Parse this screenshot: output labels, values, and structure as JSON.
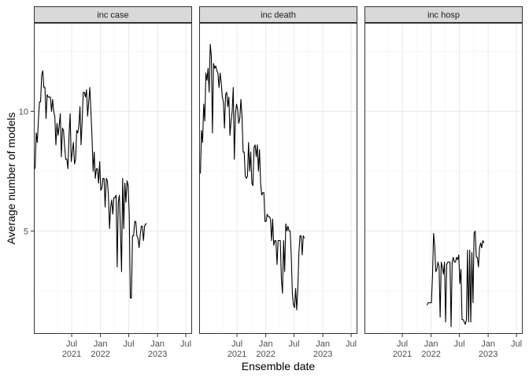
{
  "chart_data": {
    "type": "line",
    "facet_by": "target",
    "xlabel": "Ensemble date",
    "ylabel": "Average number of models",
    "xlim": [
      "2020-11-01",
      "2023-08-10"
    ],
    "ylim": [
      0.7,
      13.7
    ],
    "x_tick_labels": [
      {
        "date": "2021-07-01",
        "label": [
          "Jul",
          "2021"
        ]
      },
      {
        "date": "2022-01-01",
        "label": [
          "Jan",
          "2022"
        ]
      },
      {
        "date": "2022-07-01",
        "label": [
          "Jul",
          ""
        ]
      },
      {
        "date": "2023-01-01",
        "label": [
          "Jan",
          "2023"
        ]
      },
      {
        "date": "2023-07-01",
        "label": [
          "Jul",
          ""
        ]
      }
    ],
    "y_ticks": [
      5,
      10
    ],
    "grid": true,
    "line_color": "#000000",
    "panels": [
      {
        "title": "inc case",
        "points": [
          [
            "2020-11-09",
            7.6
          ],
          [
            "2020-11-16",
            9.1
          ],
          [
            "2020-11-23",
            8.7
          ],
          [
            "2020-11-30",
            9.6
          ],
          [
            "2020-12-07",
            10.4
          ],
          [
            "2020-12-14",
            10.4
          ],
          [
            "2020-12-21",
            11.5
          ],
          [
            "2020-12-28",
            11.7
          ],
          [
            "2021-01-04",
            11.0
          ],
          [
            "2021-01-11",
            11.0
          ],
          [
            "2021-01-18",
            9.7
          ],
          [
            "2021-01-25",
            10.7
          ],
          [
            "2021-02-01",
            10.6
          ],
          [
            "2021-02-08",
            10.6
          ],
          [
            "2021-02-15",
            10.6
          ],
          [
            "2021-02-22",
            10.0
          ],
          [
            "2021-03-01",
            10.5
          ],
          [
            "2021-03-08",
            10.0
          ],
          [
            "2021-03-15",
            9.8
          ],
          [
            "2021-03-22",
            8.6
          ],
          [
            "2021-03-29",
            9.5
          ],
          [
            "2021-04-05",
            9.0
          ],
          [
            "2021-04-12",
            9.4
          ],
          [
            "2021-04-19",
            9.9
          ],
          [
            "2021-04-26",
            8.1
          ],
          [
            "2021-05-03",
            9.3
          ],
          [
            "2021-05-10",
            9.2
          ],
          [
            "2021-05-17",
            8.5
          ],
          [
            "2021-05-24",
            8.0
          ],
          [
            "2021-05-31",
            8.0
          ],
          [
            "2021-06-07",
            7.6
          ],
          [
            "2021-06-14",
            9.0
          ],
          [
            "2021-06-21",
            9.9
          ],
          [
            "2021-06-28",
            7.9
          ],
          [
            "2021-07-05",
            8.3
          ],
          [
            "2021-07-12",
            8.7
          ],
          [
            "2021-07-19",
            7.8
          ],
          [
            "2021-07-26",
            8.0
          ],
          [
            "2021-08-02",
            9.2
          ],
          [
            "2021-08-09",
            9.1
          ],
          [
            "2021-08-16",
            9.4
          ],
          [
            "2021-08-23",
            10.2
          ],
          [
            "2021-08-30",
            8.6
          ],
          [
            "2021-09-06",
            9.6
          ],
          [
            "2021-09-13",
            10.8
          ],
          [
            "2021-09-20",
            10.8
          ],
          [
            "2021-09-27",
            10.6
          ],
          [
            "2021-10-04",
            10.9
          ],
          [
            "2021-10-11",
            9.8
          ],
          [
            "2021-10-18",
            10.4
          ],
          [
            "2021-10-25",
            11.0
          ],
          [
            "2021-11-01",
            10.0
          ],
          [
            "2021-11-08",
            8.9
          ],
          [
            "2021-11-15",
            7.5
          ],
          [
            "2021-11-22",
            8.3
          ],
          [
            "2021-11-29",
            7.2
          ],
          [
            "2021-12-06",
            7.6
          ],
          [
            "2021-12-13",
            7.6
          ],
          [
            "2021-12-20",
            7.0
          ],
          [
            "2021-12-27",
            7.9
          ],
          [
            "2022-01-03",
            6.7
          ],
          [
            "2022-01-10",
            6.8
          ],
          [
            "2022-01-17",
            7.2
          ],
          [
            "2022-01-24",
            7.2
          ],
          [
            "2022-01-31",
            6.0
          ],
          [
            "2022-02-07",
            7.2
          ],
          [
            "2022-02-14",
            7.1
          ],
          [
            "2022-02-21",
            6.5
          ],
          [
            "2022-02-28",
            5.1
          ],
          [
            "2022-03-07",
            6.0
          ],
          [
            "2022-03-14",
            6.3
          ],
          [
            "2022-03-21",
            5.7
          ],
          [
            "2022-03-28",
            6.4
          ],
          [
            "2022-04-04",
            6.4
          ],
          [
            "2022-04-11",
            6.5
          ],
          [
            "2022-04-18",
            3.5
          ],
          [
            "2022-04-25",
            6.2
          ],
          [
            "2022-05-02",
            6.5
          ],
          [
            "2022-05-09",
            5.0
          ],
          [
            "2022-05-16",
            3.3
          ],
          [
            "2022-05-23",
            7.2
          ],
          [
            "2022-05-30",
            5.1
          ],
          [
            "2022-06-06",
            7.0
          ],
          [
            "2022-06-13",
            6.2
          ],
          [
            "2022-06-20",
            7.1
          ],
          [
            "2022-06-27",
            6.9
          ],
          [
            "2022-07-04",
            5.7
          ],
          [
            "2022-07-11",
            2.2
          ],
          [
            "2022-07-18",
            2.2
          ],
          [
            "2022-07-25",
            4.8
          ],
          [
            "2022-08-01",
            4.8
          ],
          [
            "2022-08-08",
            5.4
          ],
          [
            "2022-08-15",
            5.4
          ],
          [
            "2022-08-22",
            4.8
          ],
          [
            "2022-08-29",
            4.7
          ],
          [
            "2022-09-05",
            4.3
          ],
          [
            "2022-09-12",
            4.8
          ],
          [
            "2022-09-19",
            5.2
          ],
          [
            "2022-09-26",
            5.2
          ],
          [
            "2022-10-03",
            4.6
          ],
          [
            "2022-10-10",
            5.2
          ],
          [
            "2022-10-17",
            5.3
          ],
          [
            "2022-10-24",
            5.3
          ]
        ]
      },
      {
        "title": "inc death",
        "points": [
          [
            "2020-11-09",
            7.4
          ],
          [
            "2020-11-16",
            9.2
          ],
          [
            "2020-11-23",
            8.7
          ],
          [
            "2020-11-30",
            10.3
          ],
          [
            "2020-12-07",
            9.6
          ],
          [
            "2020-12-14",
            11.6
          ],
          [
            "2020-12-21",
            11.3
          ],
          [
            "2020-12-28",
            11.8
          ],
          [
            "2021-01-04",
            10.8
          ],
          [
            "2021-01-11",
            12.8
          ],
          [
            "2021-01-18",
            12.3
          ],
          [
            "2021-01-25",
            9.1
          ],
          [
            "2021-02-01",
            12.0
          ],
          [
            "2021-02-08",
            11.8
          ],
          [
            "2021-02-15",
            11.9
          ],
          [
            "2021-02-22",
            11.7
          ],
          [
            "2021-03-01",
            11.6
          ],
          [
            "2021-03-08",
            11.0
          ],
          [
            "2021-03-15",
            11.6
          ],
          [
            "2021-03-22",
            11.2
          ],
          [
            "2021-03-29",
            10.6
          ],
          [
            "2021-04-05",
            10.4
          ],
          [
            "2021-04-12",
            9.3
          ],
          [
            "2021-04-19",
            10.7
          ],
          [
            "2021-04-26",
            10.8
          ],
          [
            "2021-05-03",
            10.2
          ],
          [
            "2021-05-10",
            10.6
          ],
          [
            "2021-05-17",
            9.0
          ],
          [
            "2021-05-24",
            9.6
          ],
          [
            "2021-05-31",
            10.0
          ],
          [
            "2021-06-07",
            11.0
          ],
          [
            "2021-06-14",
            8.0
          ],
          [
            "2021-06-21",
            9.9
          ],
          [
            "2021-06-28",
            10.3
          ],
          [
            "2021-07-05",
            10.1
          ],
          [
            "2021-07-12",
            9.5
          ],
          [
            "2021-07-19",
            9.7
          ],
          [
            "2021-07-26",
            10.5
          ],
          [
            "2021-08-02",
            9.8
          ],
          [
            "2021-08-09",
            8.3
          ],
          [
            "2021-08-16",
            8.3
          ],
          [
            "2021-08-23",
            7.3
          ],
          [
            "2021-08-30",
            7.2
          ],
          [
            "2021-09-06",
            7.3
          ],
          [
            "2021-09-13",
            8.7
          ],
          [
            "2021-09-20",
            7.5
          ],
          [
            "2021-09-27",
            8.3
          ],
          [
            "2021-10-04",
            7.0
          ],
          [
            "2021-10-11",
            6.9
          ],
          [
            "2021-10-18",
            8.5
          ],
          [
            "2021-10-25",
            8.6
          ],
          [
            "2021-11-01",
            8.1
          ],
          [
            "2021-11-08",
            8.6
          ],
          [
            "2021-11-15",
            7.5
          ],
          [
            "2021-11-22",
            8.4
          ],
          [
            "2021-11-29",
            7.0
          ],
          [
            "2021-12-06",
            6.5
          ],
          [
            "2021-12-13",
            6.6
          ],
          [
            "2021-12-20",
            6.6
          ],
          [
            "2021-12-27",
            5.4
          ],
          [
            "2022-01-03",
            5.4
          ],
          [
            "2022-01-10",
            5.7
          ],
          [
            "2022-01-17",
            5.6
          ],
          [
            "2022-01-24",
            5.6
          ],
          [
            "2022-01-31",
            5.5
          ],
          [
            "2022-02-07",
            4.6
          ],
          [
            "2022-02-14",
            5.5
          ],
          [
            "2022-02-21",
            4.4
          ],
          [
            "2022-02-28",
            4.6
          ],
          [
            "2022-03-07",
            4.6
          ],
          [
            "2022-03-14",
            3.6
          ],
          [
            "2022-03-21",
            4.6
          ],
          [
            "2022-03-28",
            4.6
          ],
          [
            "2022-04-04",
            4.6
          ],
          [
            "2022-04-11",
            3.0
          ],
          [
            "2022-04-18",
            2.4
          ],
          [
            "2022-04-25",
            4.6
          ],
          [
            "2022-05-02",
            3.3
          ],
          [
            "2022-05-09",
            5.3
          ],
          [
            "2022-05-16",
            5.0
          ],
          [
            "2022-05-23",
            5.2
          ],
          [
            "2022-05-30",
            5.0
          ],
          [
            "2022-06-06",
            5.0
          ],
          [
            "2022-06-13",
            4.0
          ],
          [
            "2022-06-20",
            2.4
          ],
          [
            "2022-06-27",
            1.9
          ],
          [
            "2022-07-04",
            1.8
          ],
          [
            "2022-07-11",
            2.6
          ],
          [
            "2022-07-18",
            1.7
          ],
          [
            "2022-07-25",
            2.6
          ],
          [
            "2022-08-01",
            4.1
          ],
          [
            "2022-08-08",
            4.8
          ],
          [
            "2022-08-15",
            4.8
          ],
          [
            "2022-08-22",
            4.0
          ],
          [
            "2022-08-29",
            4.8
          ],
          [
            "2022-09-05",
            4.7
          ]
        ]
      },
      {
        "title": "inc hosp",
        "points": [
          [
            "2021-12-06",
            1.9
          ],
          [
            "2021-12-13",
            2.0
          ],
          [
            "2021-12-20",
            2.0
          ],
          [
            "2021-12-27",
            2.0
          ],
          [
            "2022-01-03",
            2.0
          ],
          [
            "2022-01-10",
            3.1
          ],
          [
            "2022-01-17",
            4.9
          ],
          [
            "2022-01-24",
            4.4
          ],
          [
            "2022-01-31",
            3.3
          ],
          [
            "2022-02-07",
            3.4
          ],
          [
            "2022-02-14",
            3.7
          ],
          [
            "2022-02-21",
            3.5
          ],
          [
            "2022-02-28",
            1.4
          ],
          [
            "2022-03-07",
            3.7
          ],
          [
            "2022-03-14",
            3.5
          ],
          [
            "2022-03-21",
            3.2
          ],
          [
            "2022-03-28",
            3.7
          ],
          [
            "2022-04-04",
            1.2
          ],
          [
            "2022-04-11",
            3.6
          ],
          [
            "2022-04-18",
            3.7
          ],
          [
            "2022-04-25",
            3.7
          ],
          [
            "2022-05-02",
            3.7
          ],
          [
            "2022-05-09",
            1.0
          ],
          [
            "2022-05-16",
            3.7
          ],
          [
            "2022-05-23",
            3.9
          ],
          [
            "2022-05-30",
            3.7
          ],
          [
            "2022-06-06",
            3.7
          ],
          [
            "2022-06-13",
            3.9
          ],
          [
            "2022-06-20",
            3.8
          ],
          [
            "2022-06-27",
            4.0
          ],
          [
            "2022-07-04",
            2.8
          ],
          [
            "2022-07-11",
            3.4
          ],
          [
            "2022-07-18",
            1.3
          ],
          [
            "2022-07-25",
            1.3
          ],
          [
            "2022-08-01",
            1.2
          ],
          [
            "2022-08-08",
            1.1
          ],
          [
            "2022-08-15",
            1.3
          ],
          [
            "2022-08-22",
            4.2
          ],
          [
            "2022-08-29",
            1.2
          ],
          [
            "2022-09-05",
            4.2
          ],
          [
            "2022-09-12",
            1.2
          ],
          [
            "2022-09-19",
            4.1
          ],
          [
            "2022-09-26",
            2.0
          ],
          [
            "2022-10-03",
            4.9
          ],
          [
            "2022-10-10",
            5.0
          ],
          [
            "2022-10-17",
            3.9
          ],
          [
            "2022-10-24",
            3.9
          ],
          [
            "2022-10-31",
            3.5
          ],
          [
            "2022-11-07",
            4.3
          ],
          [
            "2022-11-14",
            4.5
          ],
          [
            "2022-11-21",
            4.3
          ],
          [
            "2022-11-28",
            4.6
          ],
          [
            "2022-12-05",
            4.5
          ]
        ]
      }
    ]
  }
}
